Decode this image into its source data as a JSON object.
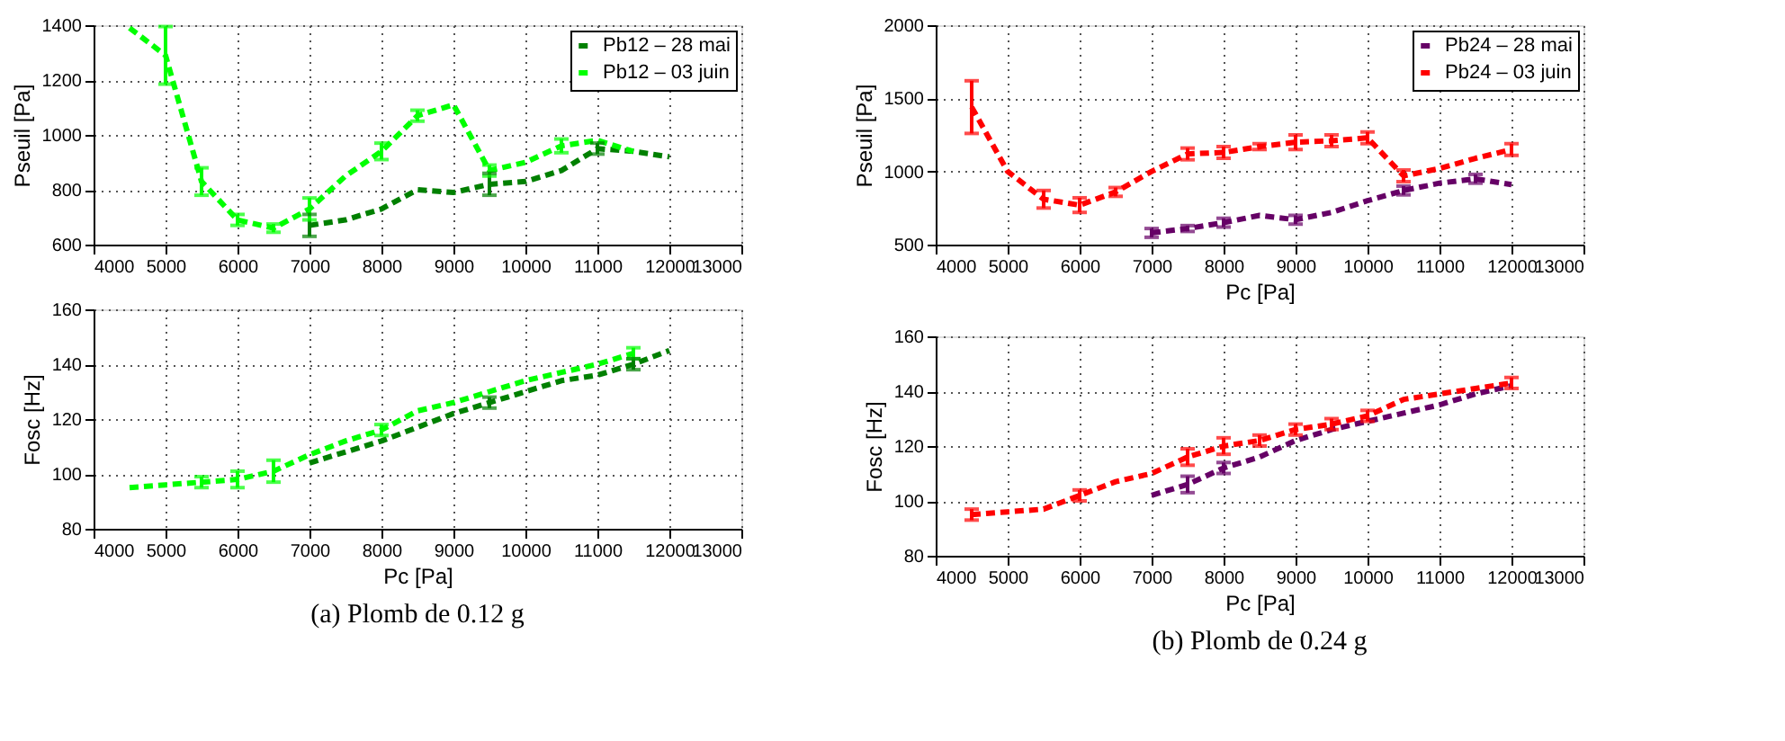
{
  "chart_data": [
    {
      "type": "line",
      "ylabel": "Pseuil [Pa]",
      "xlim": [
        4000,
        13000
      ],
      "xticks": [
        4000,
        5000,
        6000,
        7000,
        8000,
        9000,
        10000,
        11000,
        12000,
        13000
      ],
      "ylim": [
        600,
        1400
      ],
      "yticks": [
        600,
        800,
        1000,
        1200,
        1400
      ],
      "grid": true,
      "legend": "top right",
      "line_style": "dashed",
      "marker": "none",
      "series": [
        {
          "name": "Pb12 – 28 mai",
          "color": "#008000",
          "x": [
            7000,
            7500,
            8000,
            8500,
            9000,
            9500,
            10000,
            10500,
            11000,
            11500,
            12000
          ],
          "values": [
            670,
            690,
            730,
            800,
            790,
            820,
            830,
            870,
            950,
            940,
            920
          ],
          "errors": [
            40,
            null,
            null,
            null,
            null,
            40,
            null,
            null,
            20,
            null,
            null
          ]
        },
        {
          "name": "Pb12 – 03 juin",
          "color": "#00ff00",
          "x": [
            4500,
            5000,
            5500,
            6000,
            6500,
            7000,
            7500,
            8000,
            8500,
            9000,
            9500,
            10000,
            10500,
            11000,
            11500
          ],
          "values": [
            1390,
            1290,
            830,
            690,
            660,
            730,
            850,
            940,
            1070,
            1110,
            870,
            900,
            960,
            980,
            940
          ],
          "errors": [
            null,
            105,
            50,
            20,
            15,
            40,
            null,
            30,
            20,
            null,
            20,
            null,
            25,
            null,
            null
          ]
        }
      ]
    },
    {
      "type": "line",
      "ylabel": "Fosc [Hz]",
      "xlabel": "Pc [Pa]",
      "xlim": [
        4000,
        13000
      ],
      "xticks": [
        4000,
        5000,
        6000,
        7000,
        8000,
        9000,
        10000,
        11000,
        12000,
        13000
      ],
      "ylim": [
        80,
        160
      ],
      "yticks": [
        80,
        100,
        120,
        140,
        160
      ],
      "grid": true,
      "line_style": "dashed",
      "marker": "none",
      "annotations": [
        "(a) Plomb de 0.12 g"
      ],
      "series": [
        {
          "color": "#008000",
          "x": [
            7000,
            7500,
            8000,
            8500,
            9000,
            9500,
            10000,
            10500,
            11000,
            11500,
            12000
          ],
          "values": [
            104,
            108,
            112,
            117,
            122,
            126,
            130,
            134,
            136,
            140,
            145
          ],
          "errors": [
            null,
            null,
            null,
            null,
            null,
            2,
            null,
            null,
            null,
            2,
            null
          ]
        },
        {
          "color": "#00ff00",
          "x": [
            4500,
            5000,
            5500,
            6000,
            6500,
            7000,
            7500,
            8000,
            8500,
            9000,
            9500,
            10000,
            10500,
            11000,
            11500
          ],
          "values": [
            95,
            96,
            97,
            98,
            101,
            107,
            112,
            116,
            123,
            126,
            130,
            134,
            137,
            140,
            144
          ],
          "errors": [
            null,
            null,
            2,
            3,
            4,
            null,
            null,
            2,
            null,
            null,
            null,
            null,
            null,
            null,
            2
          ]
        }
      ]
    },
    {
      "type": "line",
      "ylabel": "Pseuil [Pa]",
      "xlabel": "Pc [Pa]",
      "xlim": [
        4000,
        13000
      ],
      "xticks": [
        4000,
        5000,
        6000,
        7000,
        8000,
        9000,
        10000,
        11000,
        12000,
        13000
      ],
      "ylim": [
        500,
        2000
      ],
      "yticks": [
        500,
        1000,
        1500,
        2000
      ],
      "grid": true,
      "legend": "top right",
      "line_style": "dashed",
      "marker": "none",
      "series": [
        {
          "name": "Pb24 – 28 mai",
          "color": "#660066",
          "x": [
            7000,
            7500,
            8000,
            8500,
            9000,
            9500,
            10000,
            10500,
            11000,
            11500,
            12000
          ],
          "values": [
            580,
            610,
            650,
            700,
            670,
            720,
            800,
            870,
            920,
            950,
            910
          ],
          "errors": [
            30,
            20,
            30,
            null,
            30,
            null,
            null,
            30,
            null,
            30,
            null
          ]
        },
        {
          "name": "Pb24 – 03 juin",
          "color": "#ff0000",
          "x": [
            4500,
            5000,
            5500,
            6000,
            6500,
            7000,
            7500,
            8000,
            8500,
            9000,
            9500,
            10000,
            10500,
            11000,
            11500,
            12000
          ],
          "values": [
            1440,
            1000,
            810,
            770,
            860,
            1000,
            1120,
            1130,
            1170,
            1200,
            1210,
            1230,
            970,
            1020,
            1090,
            1150
          ],
          "errors": [
            180,
            null,
            60,
            50,
            30,
            null,
            40,
            40,
            20,
            50,
            40,
            40,
            40,
            null,
            null,
            40
          ]
        }
      ]
    },
    {
      "type": "line",
      "ylabel": "Fosc [Hz]",
      "xlabel": "Pc [Pa]",
      "xlim": [
        4000,
        13000
      ],
      "xticks": [
        4000,
        5000,
        6000,
        7000,
        8000,
        9000,
        10000,
        11000,
        12000,
        13000
      ],
      "ylim": [
        80,
        160
      ],
      "yticks": [
        80,
        100,
        120,
        140,
        160
      ],
      "grid": true,
      "line_style": "dashed",
      "marker": "none",
      "annotations": [
        "(b) Plomb de 0.24 g"
      ],
      "series": [
        {
          "color": "#660066",
          "x": [
            7000,
            7500,
            8000,
            8500,
            9000,
            9500,
            10000,
            10500,
            11000,
            11500,
            12000
          ],
          "values": [
            102,
            106,
            112,
            116,
            122,
            126,
            129,
            132,
            135,
            139,
            142
          ],
          "errors": [
            null,
            3,
            2,
            null,
            null,
            null,
            null,
            null,
            null,
            null,
            null
          ]
        },
        {
          "color": "#ff0000",
          "x": [
            4500,
            5000,
            5500,
            6000,
            6500,
            7000,
            7500,
            8000,
            8500,
            9000,
            9500,
            10000,
            10500,
            11000,
            11500,
            12000
          ],
          "values": [
            95,
            96,
            97,
            102,
            107,
            110,
            116,
            120,
            122,
            126,
            128,
            131,
            137,
            139,
            141,
            143
          ],
          "errors": [
            2,
            null,
            null,
            2,
            null,
            null,
            3,
            3,
            2,
            2,
            2,
            2,
            null,
            null,
            null,
            2
          ]
        }
      ]
    }
  ]
}
